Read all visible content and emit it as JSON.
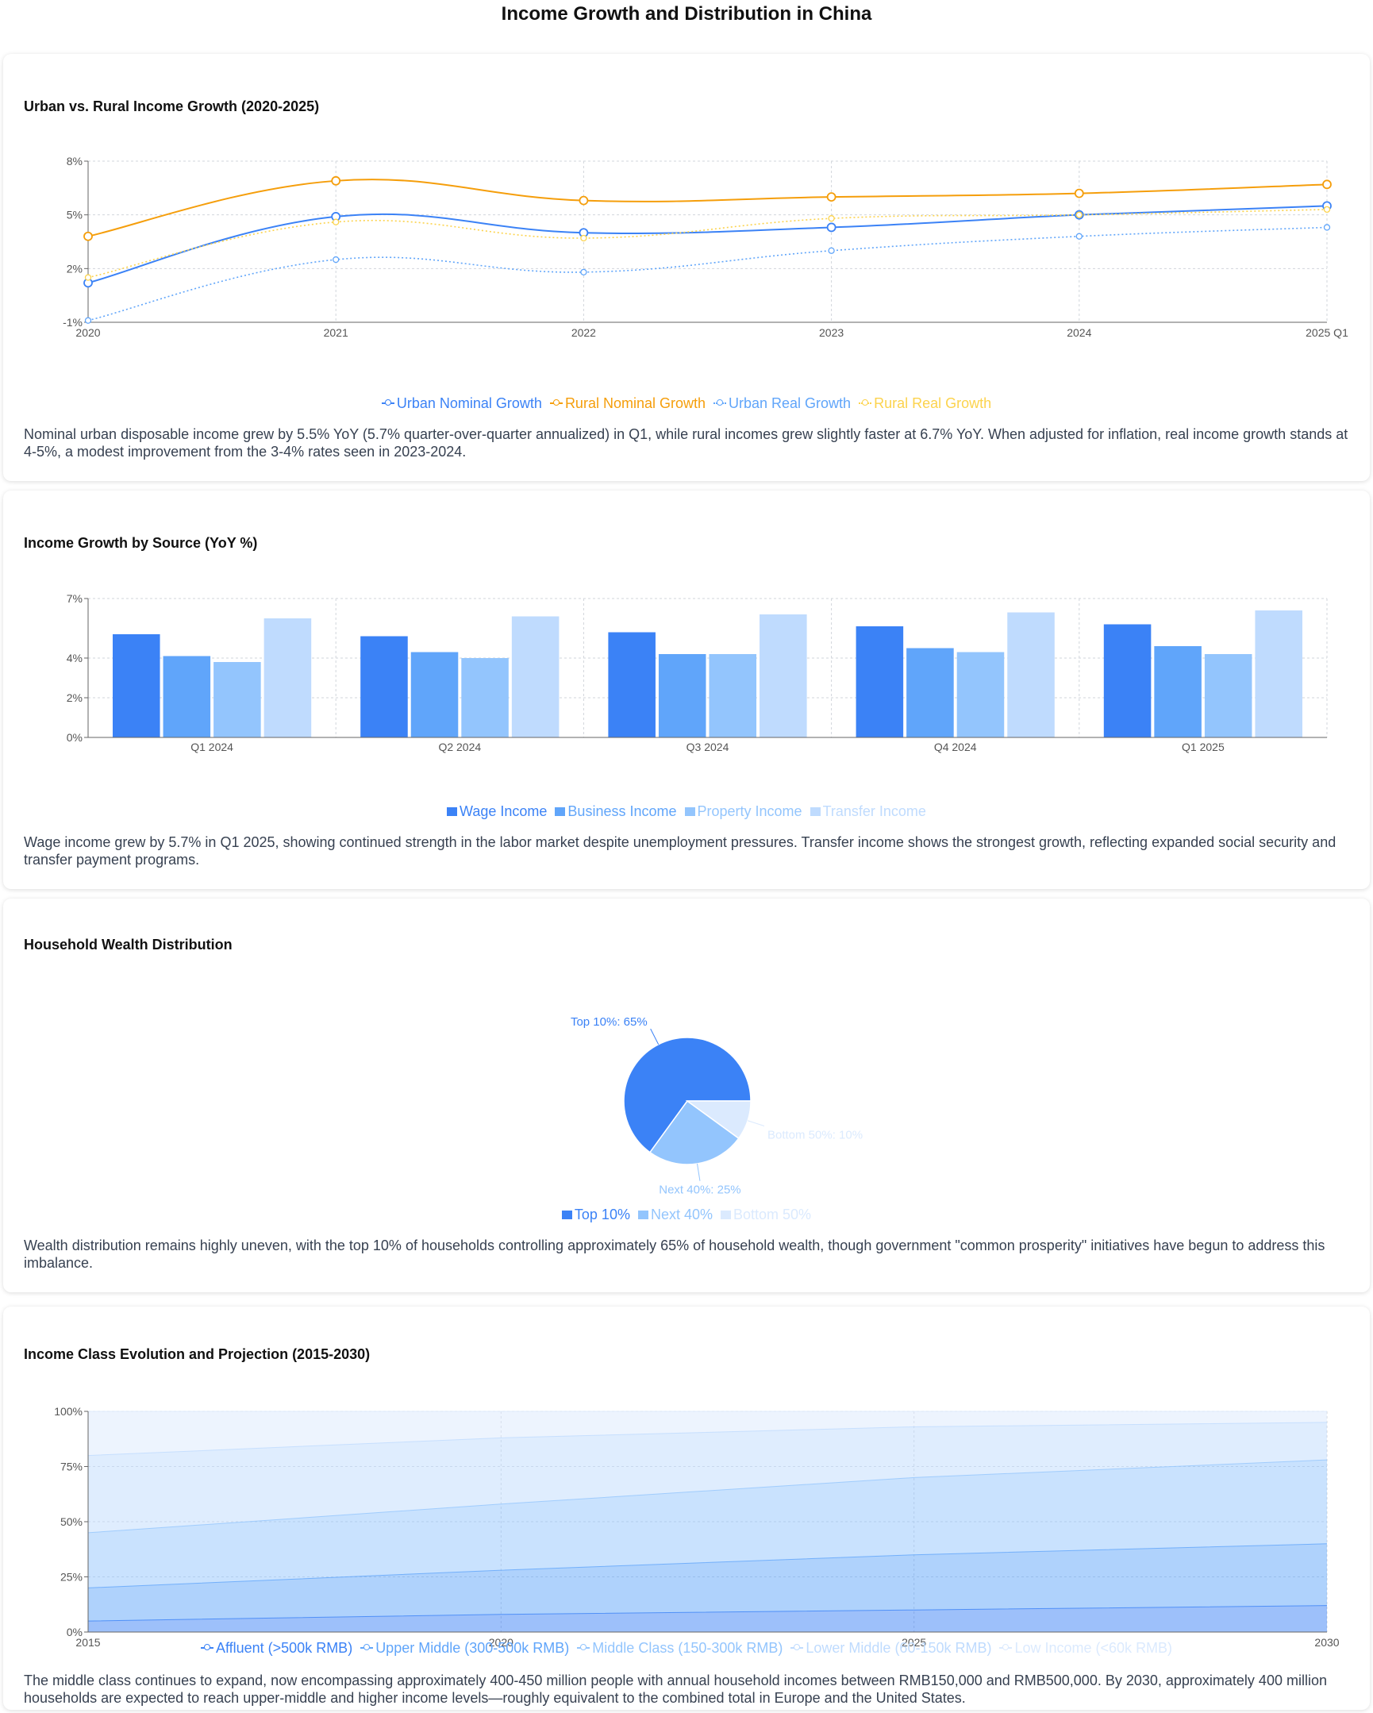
{
  "page_title": "Income Growth and Distribution in China",
  "colors": {
    "blue": "#3b82f6",
    "orange": "#f59e0b",
    "light_blue": "#60a5fa",
    "yellow": "#fcd34d"
  },
  "charts": {
    "income_growth": {
      "title": "Urban vs. Rural Income Growth (2020-2025)",
      "description": "Nominal urban disposable income grew by 5.5% YoY (5.7% quarter-over-quarter annualized) in Q1, while rural incomes grew slightly faster at 6.7% YoY. When adjusted for inflation, real income growth stands at 4-5%, a modest improvement from the 3-4% rates seen in 2023-2024."
    },
    "income_source": {
      "title": "Income Growth by Source (YoY %)",
      "description": "Wage income grew by 5.7% in Q1 2025, showing continued strength in the labor market despite unemployment pressures. Transfer income shows the strongest growth, reflecting expanded social security and transfer payment programs."
    },
    "wealth": {
      "title": "Household Wealth Distribution",
      "description": "Wealth distribution remains highly uneven, with the top 10% of households controlling approximately 65% of household wealth, though government \"common prosperity\" initiatives have begun to address this imbalance."
    },
    "income_class": {
      "title": "Income Class Evolution and Projection (2015-2030)",
      "description": "The middle class continues to expand, now encompassing approximately 400-450 million people with annual household incomes between RMB150,000 and RMB500,000. By 2030, approximately 400 million households are expected to reach upper-middle and higher income levels—roughly equivalent to the combined total in Europe and the United States."
    }
  },
  "chart_data": [
    {
      "id": "income_growth",
      "type": "line",
      "x": [
        "2020",
        "2021",
        "2022",
        "2023",
        "2024",
        "2025 Q1"
      ],
      "y_ticks": [
        "-1%",
        "2%",
        "5%",
        "8%"
      ],
      "ylim": [
        -1,
        8
      ],
      "grid": true,
      "legend_position": "bottom",
      "series": [
        {
          "name": "Urban Nominal Growth",
          "color": "#3b82f6",
          "style": "solid",
          "values": [
            1.2,
            4.9,
            4.0,
            4.3,
            5.0,
            5.5
          ]
        },
        {
          "name": "Rural Nominal Growth",
          "color": "#f59e0b",
          "style": "solid",
          "values": [
            3.8,
            6.9,
            5.8,
            6.0,
            6.2,
            6.7
          ]
        },
        {
          "name": "Urban Real Growth",
          "color": "#60a5fa",
          "style": "dotted",
          "values": [
            -0.9,
            2.5,
            1.8,
            3.0,
            3.8,
            4.3
          ]
        },
        {
          "name": "Rural Real Growth",
          "color": "#fcd34d",
          "style": "dotted",
          "values": [
            1.5,
            4.6,
            3.7,
            4.8,
            5.0,
            5.3
          ]
        }
      ]
    },
    {
      "id": "income_source",
      "type": "bar",
      "categories": [
        "Q1 2024",
        "Q2 2024",
        "Q3 2024",
        "Q4 2024",
        "Q1 2025"
      ],
      "y_ticks": [
        "0%",
        "2%",
        "4%",
        "7%"
      ],
      "ylim": [
        0,
        7
      ],
      "grid": true,
      "legend_position": "bottom",
      "series": [
        {
          "name": "Wage Income",
          "color": "#3b82f6",
          "values": [
            5.2,
            5.1,
            5.3,
            5.6,
            5.7
          ]
        },
        {
          "name": "Business Income",
          "color": "#60a5fa",
          "values": [
            4.1,
            4.3,
            4.2,
            4.5,
            4.6
          ]
        },
        {
          "name": "Property Income",
          "color": "#93c5fd",
          "values": [
            3.8,
            4.0,
            4.2,
            4.3,
            4.2
          ]
        },
        {
          "name": "Transfer Income",
          "color": "#bfdbfe",
          "values": [
            6.0,
            6.1,
            6.2,
            6.3,
            6.4
          ]
        }
      ]
    },
    {
      "id": "wealth",
      "type": "pie",
      "legend_position": "bottom",
      "slices": [
        {
          "name": "Top 10%",
          "value": 65,
          "label": "Top 10%: 65%",
          "color": "#3b82f6"
        },
        {
          "name": "Next 40%",
          "value": 25,
          "label": "Next 40%: 25%",
          "color": "#93c5fd"
        },
        {
          "name": "Bottom 50%",
          "value": 10,
          "label": "Bottom 50%: 10%",
          "color": "#dbeafe"
        }
      ]
    },
    {
      "id": "income_class",
      "type": "area",
      "stacked": true,
      "x": [
        "2015",
        "2020",
        "2025",
        "2030"
      ],
      "y_ticks": [
        "0%",
        "25%",
        "50%",
        "75%",
        "100%"
      ],
      "ylim": [
        0,
        100
      ],
      "grid": true,
      "legend_position": "bottom",
      "series": [
        {
          "name": "Affluent (>500k RMB)",
          "color": "#3b82f6",
          "values": [
            5,
            8,
            10,
            12
          ]
        },
        {
          "name": "Upper Middle (300-500k RMB)",
          "color": "#60a5fa",
          "values": [
            15,
            20,
            25,
            28
          ]
        },
        {
          "name": "Middle Class (150-300k RMB)",
          "color": "#93c5fd",
          "values": [
            25,
            30,
            35,
            38
          ]
        },
        {
          "name": "Lower Middle (60-150k RMB)",
          "color": "#bfdbfe",
          "values": [
            35,
            30,
            23,
            17
          ]
        },
        {
          "name": "Low Income (<60k RMB)",
          "color": "#dbeafe",
          "values": [
            20,
            12,
            7,
            5
          ]
        }
      ]
    }
  ]
}
